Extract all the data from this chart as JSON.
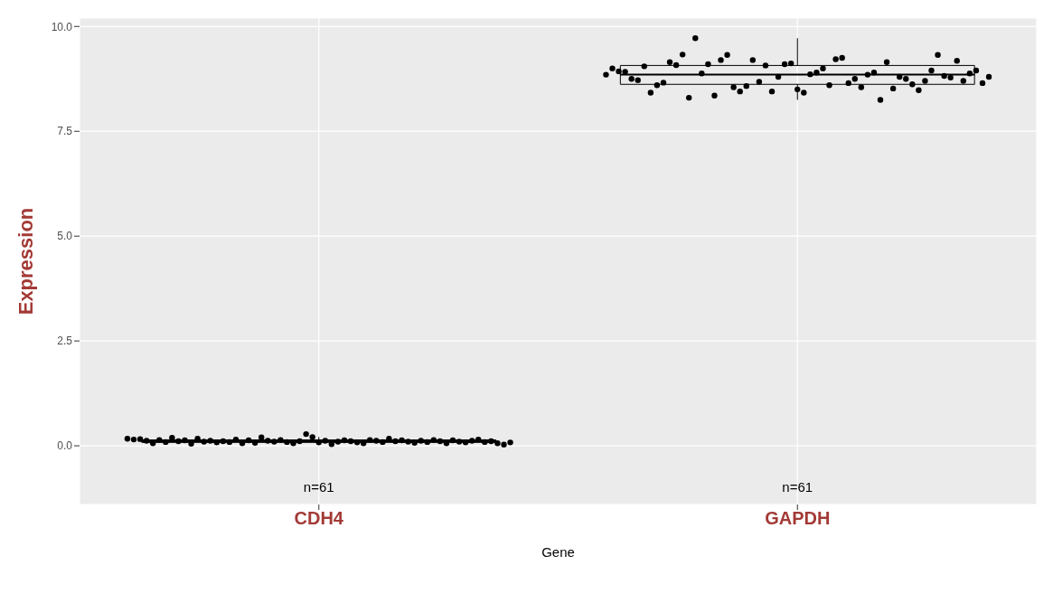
{
  "chart_data": {
    "type": "box",
    "xlabel": "Gene",
    "ylabel": "Expression",
    "categories": [
      "CDH4",
      "GAPDH"
    ],
    "boxes": [
      {
        "low": 0.03,
        "q1": 0.08,
        "median": 0.11,
        "q3": 0.14,
        "high": 0.21
      },
      {
        "low": 8.25,
        "q1": 8.62,
        "median": 8.85,
        "q3": 9.07,
        "high": 9.72
      }
    ],
    "ylim": [
      -1.4,
      10.2
    ],
    "yticks": [
      {
        "value": 0,
        "label": "0.0"
      },
      {
        "value": 2.5,
        "label": "2.5"
      },
      {
        "value": 5,
        "label": "5.0"
      },
      {
        "value": 7.5,
        "label": "7.5"
      },
      {
        "value": 10,
        "label": "10.0"
      }
    ],
    "grid": true,
    "legend": false,
    "annotations": [
      "n=61",
      "n=61"
    ],
    "series": [
      {
        "type": "scatter",
        "color": "#000000",
        "x": [
          "CDH4",
          "CDH4",
          "CDH4",
          "CDH4",
          "CDH4",
          "CDH4",
          "CDH4",
          "CDH4",
          "CDH4",
          "CDH4",
          "CDH4",
          "CDH4",
          "CDH4",
          "CDH4",
          "CDH4",
          "CDH4",
          "CDH4",
          "CDH4",
          "CDH4",
          "CDH4",
          "CDH4",
          "CDH4",
          "CDH4",
          "CDH4",
          "CDH4",
          "CDH4",
          "CDH4",
          "CDH4",
          "CDH4",
          "CDH4",
          "CDH4",
          "CDH4",
          "CDH4",
          "CDH4",
          "CDH4",
          "CDH4",
          "CDH4",
          "CDH4",
          "CDH4",
          "CDH4",
          "CDH4",
          "CDH4",
          "CDH4",
          "CDH4",
          "CDH4",
          "CDH4",
          "CDH4",
          "CDH4",
          "CDH4",
          "CDH4",
          "CDH4",
          "CDH4",
          "CDH4",
          "CDH4",
          "CDH4",
          "CDH4",
          "CDH4",
          "CDH4",
          "CDH4",
          "CDH4",
          "CDH4"
        ],
        "values": [
          0.17,
          0.15,
          0.16,
          0.12,
          0.06,
          0.14,
          0.09,
          0.19,
          0.11,
          0.13,
          0.05,
          0.17,
          0.1,
          0.12,
          0.08,
          0.11,
          0.09,
          0.15,
          0.06,
          0.13,
          0.07,
          0.2,
          0.12,
          0.1,
          0.14,
          0.09,
          0.06,
          0.11,
          0.28,
          0.21,
          0.08,
          0.12,
          0.04,
          0.1,
          0.13,
          0.11,
          0.08,
          0.06,
          0.14,
          0.12,
          0.09,
          0.17,
          0.11,
          0.13,
          0.1,
          0.07,
          0.12,
          0.09,
          0.14,
          0.11,
          0.06,
          0.13,
          0.1,
          0.08,
          0.12,
          0.15,
          0.09,
          0.11,
          0.06,
          0.03,
          0.08
        ]
      },
      {
        "type": "scatter",
        "color": "#000000",
        "x": [
          "GAPDH",
          "GAPDH",
          "GAPDH",
          "GAPDH",
          "GAPDH",
          "GAPDH",
          "GAPDH",
          "GAPDH",
          "GAPDH",
          "GAPDH",
          "GAPDH",
          "GAPDH",
          "GAPDH",
          "GAPDH",
          "GAPDH",
          "GAPDH",
          "GAPDH",
          "GAPDH",
          "GAPDH",
          "GAPDH",
          "GAPDH",
          "GAPDH",
          "GAPDH",
          "GAPDH",
          "GAPDH",
          "GAPDH",
          "GAPDH",
          "GAPDH",
          "GAPDH",
          "GAPDH",
          "GAPDH",
          "GAPDH",
          "GAPDH",
          "GAPDH",
          "GAPDH",
          "GAPDH",
          "GAPDH",
          "GAPDH",
          "GAPDH",
          "GAPDH",
          "GAPDH",
          "GAPDH",
          "GAPDH",
          "GAPDH",
          "GAPDH",
          "GAPDH",
          "GAPDH",
          "GAPDH",
          "GAPDH",
          "GAPDH",
          "GAPDH",
          "GAPDH",
          "GAPDH",
          "GAPDH",
          "GAPDH",
          "GAPDH",
          "GAPDH",
          "GAPDH",
          "GAPDH",
          "GAPDH",
          "GAPDH"
        ],
        "values": [
          8.85,
          9.0,
          8.93,
          8.92,
          8.75,
          8.72,
          9.05,
          8.42,
          8.6,
          8.66,
          9.15,
          9.08,
          9.33,
          8.3,
          9.72,
          8.88,
          9.1,
          8.35,
          9.2,
          9.32,
          8.55,
          8.45,
          8.58,
          9.2,
          8.68,
          9.07,
          8.45,
          8.8,
          9.1,
          9.12,
          8.5,
          8.42,
          8.86,
          8.9,
          9.0,
          8.6,
          9.22,
          9.25,
          8.65,
          8.75,
          8.55,
          8.85,
          8.9,
          8.25,
          9.15,
          8.52,
          8.8,
          8.75,
          8.62,
          8.48,
          8.7,
          8.95,
          9.32,
          8.82,
          8.78,
          9.18,
          8.7,
          8.88,
          8.95,
          8.65,
          8.8
        ]
      }
    ]
  }
}
